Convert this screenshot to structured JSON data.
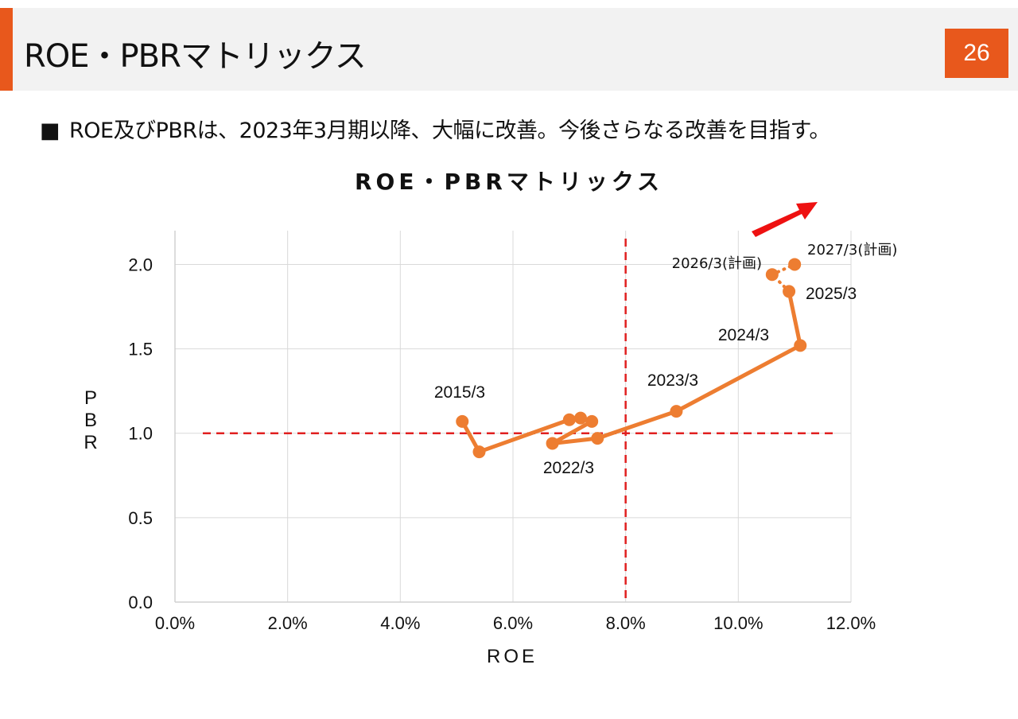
{
  "header": {
    "title": "ROE・PBRマトリックス",
    "page_number": "26",
    "accent_color": "#e8581c"
  },
  "bullet": {
    "marker": "■",
    "text": "ROE及びPBRは、2023年3月期以降、大幅に改善。今後さらなる改善を目指す。"
  },
  "chart_data": {
    "type": "scatter",
    "title": "ROE・PBRマトリックス",
    "xlabel": "ROE",
    "ylabel": "PBR",
    "xlim": [
      0,
      12
    ],
    "ylim": [
      0,
      2.2
    ],
    "x_ticks": [
      "0.0%",
      "2.0%",
      "4.0%",
      "6.0%",
      "8.0%",
      "10.0%",
      "12.0%"
    ],
    "y_ticks": [
      "0.0",
      "0.5",
      "1.0",
      "1.5",
      "2.0"
    ],
    "grid": true,
    "series_color": "#ed7d31",
    "reference_color": "#e02020",
    "reference_lines": {
      "x": 8.0,
      "y": 1.0
    },
    "points": [
      {
        "x": 5.1,
        "y": 1.07,
        "label": "2015/3"
      },
      {
        "x": 5.4,
        "y": 0.89,
        "label": ""
      },
      {
        "x": 7.0,
        "y": 1.08,
        "label": ""
      },
      {
        "x": 7.2,
        "y": 1.09,
        "label": ""
      },
      {
        "x": 7.4,
        "y": 1.07,
        "label": ""
      },
      {
        "x": 6.7,
        "y": 0.94,
        "label": ""
      },
      {
        "x": 7.5,
        "y": 0.97,
        "label": "2022/3"
      },
      {
        "x": 8.9,
        "y": 1.13,
        "label": "2023/3"
      },
      {
        "x": 11.1,
        "y": 1.52,
        "label": "2024/3"
      },
      {
        "x": 10.9,
        "y": 1.84,
        "label": "2025/3"
      }
    ],
    "plan_points": [
      {
        "x": 10.6,
        "y": 1.94,
        "label": "2026/3(計画)"
      },
      {
        "x": 11.0,
        "y": 2.0,
        "label": "2027/3(計画)"
      }
    ],
    "annotations": [
      "trend-arrow up-right"
    ]
  }
}
